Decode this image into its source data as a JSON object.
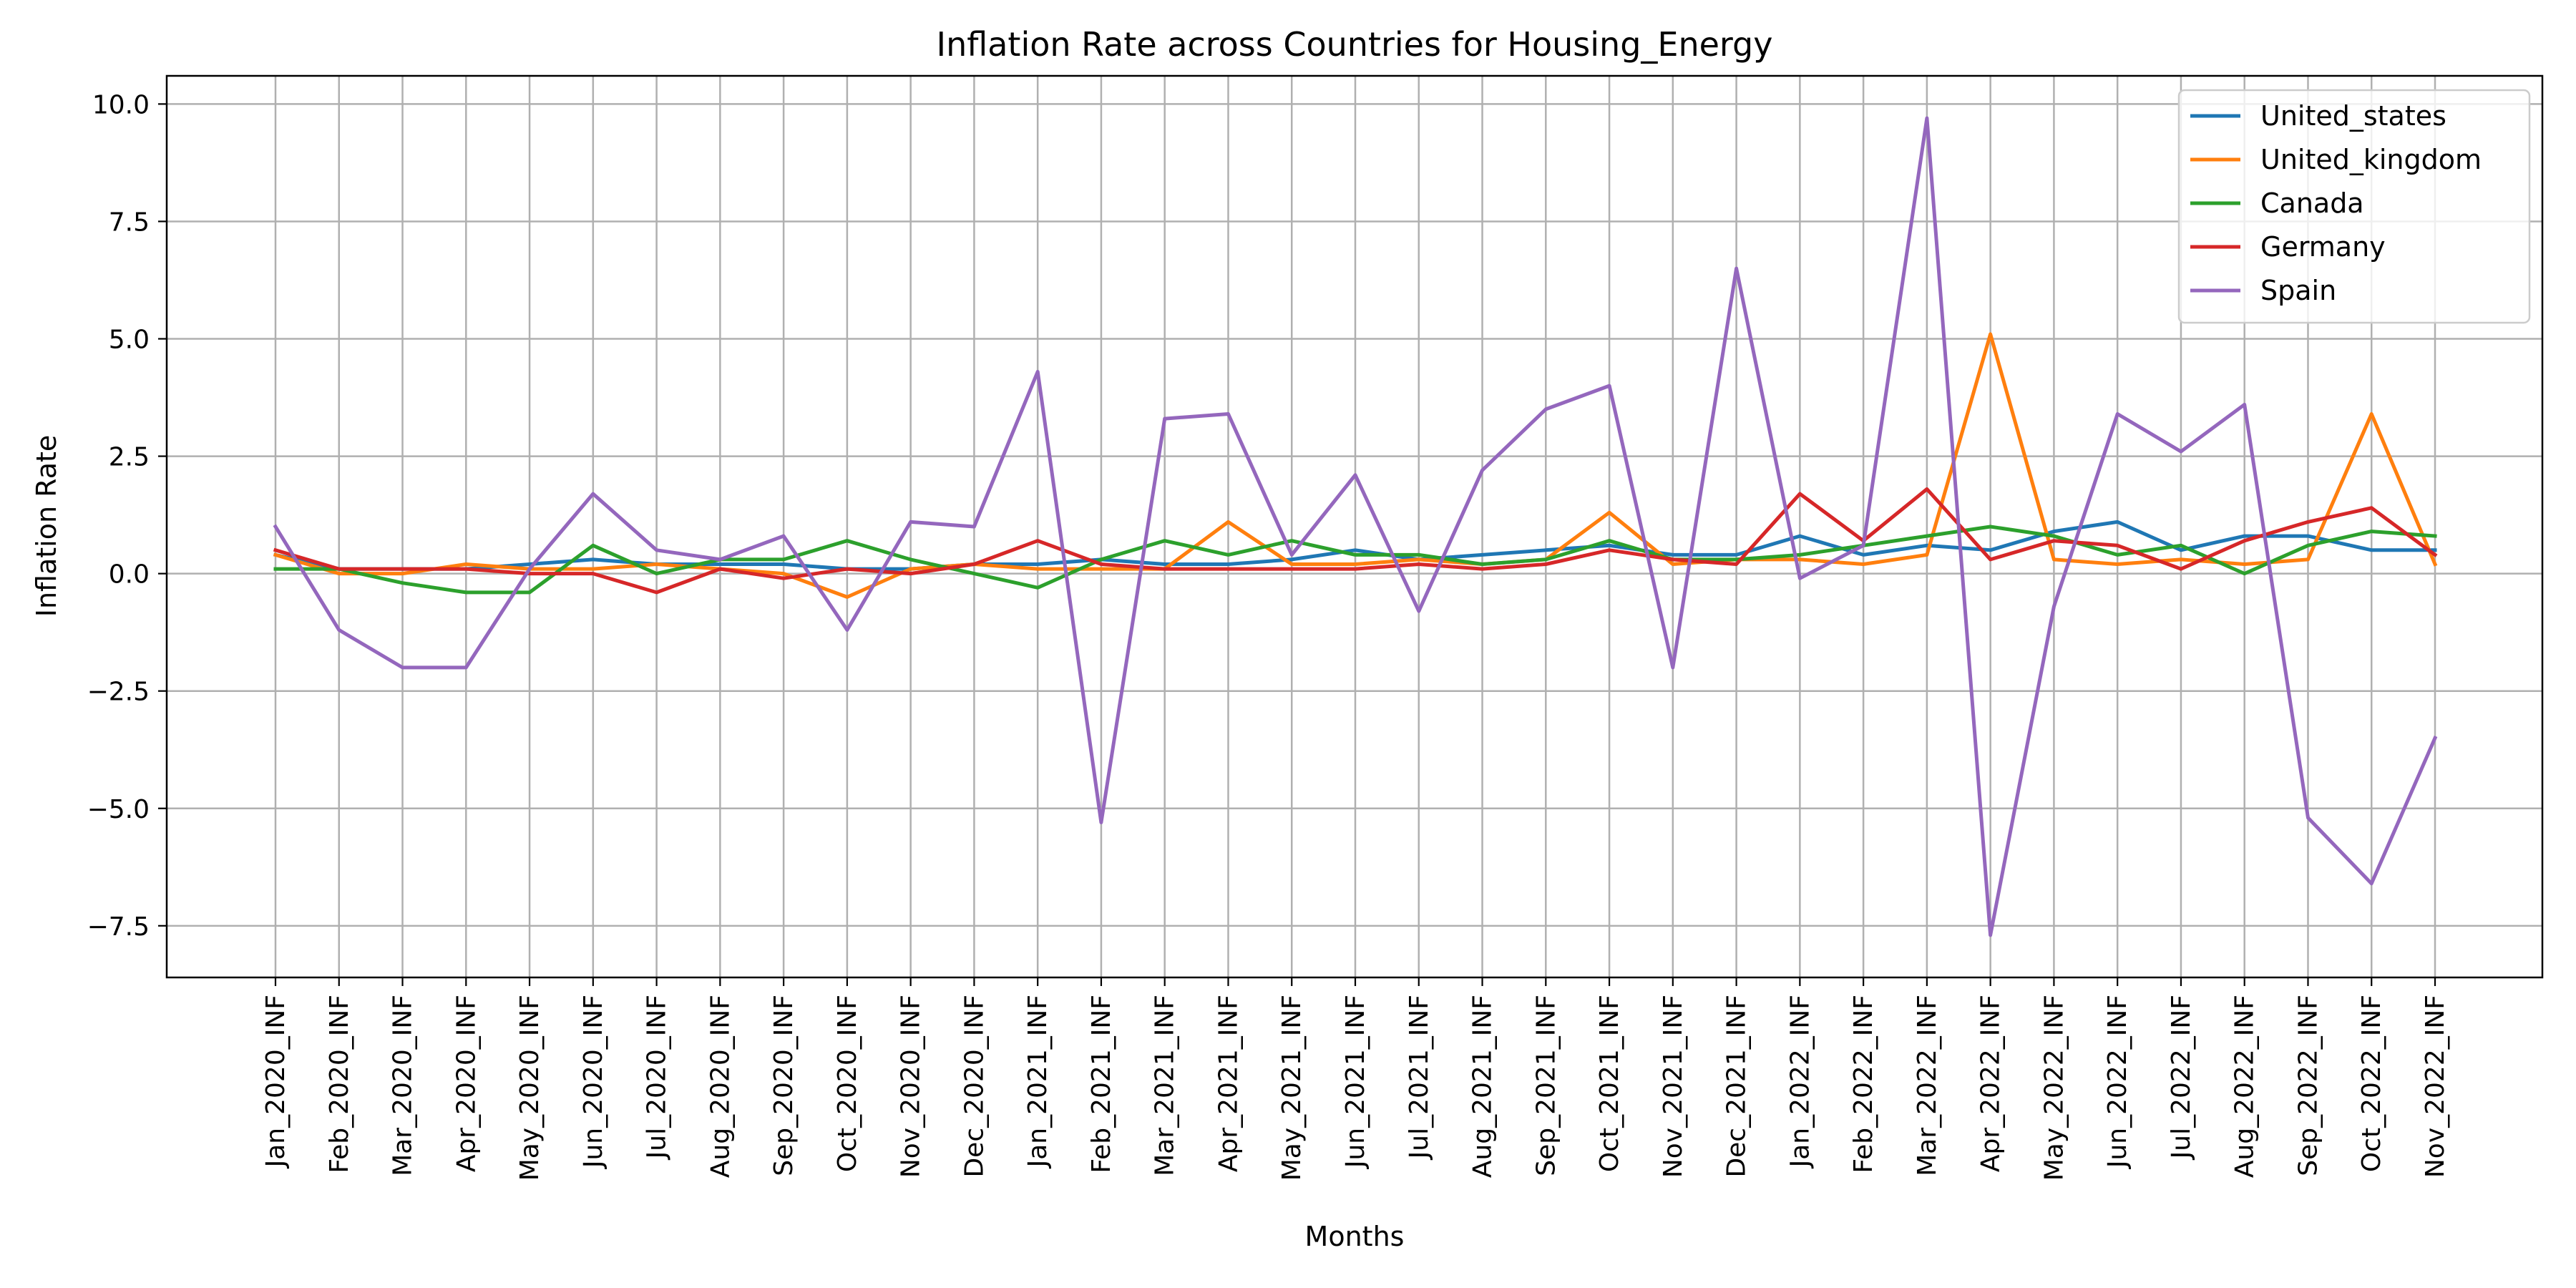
{
  "chart_data": {
    "type": "line",
    "title": "Inflation Rate across Countries for Housing_Energy",
    "xlabel": "Months",
    "ylabel": "Inflation Rate",
    "ylim": [
      -8.6,
      10.6
    ],
    "yticks": [
      -7.5,
      -5.0,
      -2.5,
      0.0,
      2.5,
      5.0,
      7.5,
      10.0
    ],
    "ytick_labels": [
      "−7.5",
      "−5.0",
      "−2.5",
      "0.0",
      "2.5",
      "5.0",
      "7.5",
      "10.0"
    ],
    "grid": true,
    "legend_position": "top-right",
    "categories": [
      "Jan_2020_INF",
      "Feb_2020_INF",
      "Mar_2020_INF",
      "Apr_2020_INF",
      "May_2020_INF",
      "Jun_2020_INF",
      "Jul_2020_INF",
      "Aug_2020_INF",
      "Sep_2020_INF",
      "Oct_2020_INF",
      "Nov_2020_INF",
      "Dec_2020_INF",
      "Jan_2021_INF",
      "Feb_2021_INF",
      "Mar_2021_INF",
      "Apr_2021_INF",
      "May_2021_INF",
      "Jun_2021_INF",
      "Jul_2021_INF",
      "Aug_2021_INF",
      "Sep_2021_INF",
      "Oct_2021_INF",
      "Nov_2021_INF",
      "Dec_2021_INF",
      "Jan_2022_INF",
      "Feb_2022_INF",
      "Mar_2022_INF",
      "Apr_2022_INF",
      "May_2022_INF",
      "Jun_2022_INF",
      "Jul_2022_INF",
      "Aug_2022_INF",
      "Sep_2022_INF",
      "Oct_2022_INF",
      "Nov_2022_INF"
    ],
    "series": [
      {
        "name": "United_states",
        "color": "#1f77b4",
        "values": [
          0.4,
          0.1,
          0.1,
          0.1,
          0.2,
          0.3,
          0.2,
          0.2,
          0.2,
          0.1,
          0.1,
          0.2,
          0.2,
          0.3,
          0.2,
          0.2,
          0.3,
          0.5,
          0.3,
          0.4,
          0.5,
          0.6,
          0.4,
          0.4,
          0.8,
          0.4,
          0.6,
          0.5,
          0.9,
          1.1,
          0.5,
          0.8,
          0.8,
          0.5,
          0.5
        ]
      },
      {
        "name": "United_kingdom",
        "color": "#ff7f0e",
        "values": [
          0.4,
          0.0,
          0.0,
          0.2,
          0.1,
          0.1,
          0.2,
          0.1,
          0.0,
          -0.5,
          0.1,
          0.2,
          0.1,
          0.1,
          0.1,
          1.1,
          0.2,
          0.2,
          0.3,
          0.2,
          0.3,
          1.3,
          0.2,
          0.3,
          0.3,
          0.2,
          0.4,
          5.1,
          0.3,
          0.2,
          0.3,
          0.2,
          0.3,
          3.4,
          0.2
        ]
      },
      {
        "name": "Canada",
        "color": "#2ca02c",
        "values": [
          0.1,
          0.1,
          -0.2,
          -0.4,
          -0.4,
          0.6,
          0.0,
          0.3,
          0.3,
          0.7,
          0.3,
          0.0,
          -0.3,
          0.3,
          0.7,
          0.4,
          0.7,
          0.4,
          0.4,
          0.2,
          0.3,
          0.7,
          0.3,
          0.3,
          0.4,
          0.6,
          0.8,
          1.0,
          0.8,
          0.4,
          0.6,
          0.0,
          0.6,
          0.9,
          0.8
        ]
      },
      {
        "name": "Germany",
        "color": "#d62728",
        "values": [
          0.5,
          0.1,
          0.1,
          0.1,
          0.0,
          0.0,
          -0.4,
          0.1,
          -0.1,
          0.1,
          0.0,
          0.2,
          0.7,
          0.2,
          0.1,
          0.1,
          0.1,
          0.1,
          0.2,
          0.1,
          0.2,
          0.5,
          0.3,
          0.2,
          1.7,
          0.7,
          1.8,
          0.3,
          0.7,
          0.6,
          0.1,
          0.7,
          1.1,
          1.4,
          0.4
        ]
      },
      {
        "name": "Spain",
        "color": "#9467bd",
        "values": [
          1.0,
          -1.2,
          -2.0,
          -2.0,
          0.1,
          1.7,
          0.5,
          0.3,
          0.8,
          -1.2,
          1.1,
          1.0,
          4.3,
          -5.3,
          3.3,
          3.4,
          0.4,
          2.1,
          -0.8,
          2.2,
          3.5,
          4.0,
          -2.0,
          6.5,
          -0.1,
          0.6,
          9.7,
          -7.7,
          -0.7,
          3.4,
          2.6,
          3.6,
          -5.2,
          -6.6,
          -3.5
        ]
      }
    ]
  }
}
